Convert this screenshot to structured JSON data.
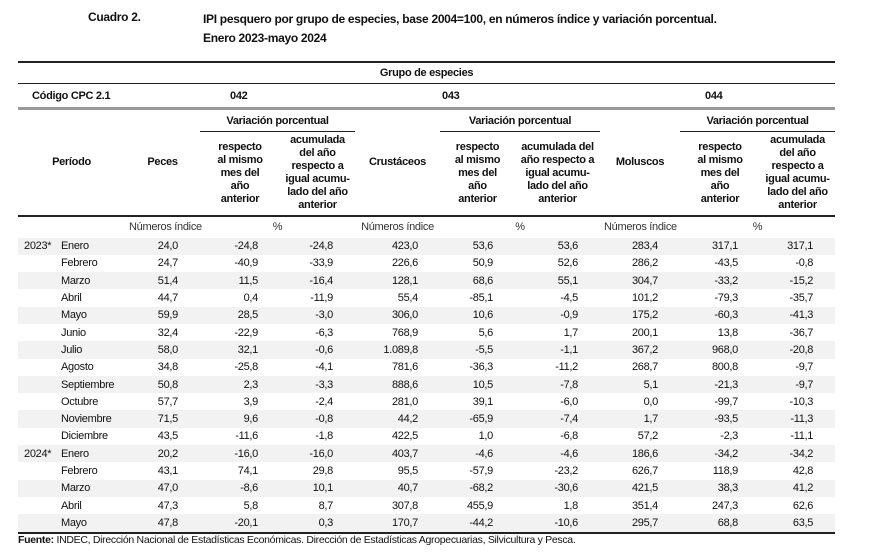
{
  "header": {
    "label": "Cuadro 2.",
    "title_line1": "IPI pesquero por grupo de especies, base 2004=100, en números índice y variación porcentual.",
    "title_line2": "Enero 2023-mayo 2024"
  },
  "table": {
    "group_header": "Grupo de especies",
    "code_label": "Código CPC 2.1",
    "codes": [
      "042",
      "043",
      "044"
    ],
    "variation_label": "Variación porcentual",
    "period_label": "Período",
    "species": [
      "Peces",
      "Crustáceos",
      "Moluscos"
    ],
    "sub_monthly": "respecto al mismo mes del año anterior",
    "sub_cumulative": "acumulada del año respecto a igual acumu-lado del año anterior",
    "unit_index": "Números índice",
    "unit_pct": "%",
    "rows": [
      {
        "year": "2023*",
        "month": "Enero",
        "v": [
          "24,0",
          "-24,8",
          "-24,8",
          "423,0",
          "53,6",
          "53,6",
          "283,4",
          "317,1",
          "317,1"
        ]
      },
      {
        "year": "",
        "month": "Febrero",
        "v": [
          "24,7",
          "-40,9",
          "-33,9",
          "226,6",
          "50,9",
          "52,6",
          "286,2",
          "-43,5",
          "-0,8"
        ]
      },
      {
        "year": "",
        "month": "Marzo",
        "v": [
          "51,4",
          "11,5",
          "-16,4",
          "128,1",
          "68,6",
          "55,1",
          "304,7",
          "-33,2",
          "-15,2"
        ]
      },
      {
        "year": "",
        "month": "Abril",
        "v": [
          "44,7",
          "0,4",
          "-11,9",
          "55,4",
          "-85,1",
          "-4,5",
          "101,2",
          "-79,3",
          "-35,7"
        ]
      },
      {
        "year": "",
        "month": "Mayo",
        "v": [
          "59,9",
          "28,5",
          "-3,0",
          "306,0",
          "10,6",
          "-0,9",
          "175,2",
          "-60,3",
          "-41,3"
        ]
      },
      {
        "year": "",
        "month": "Junio",
        "v": [
          "32,4",
          "-22,9",
          "-6,3",
          "768,9",
          "5,6",
          "1,7",
          "200,1",
          "13,8",
          "-36,7"
        ]
      },
      {
        "year": "",
        "month": "Julio",
        "v": [
          "58,0",
          "32,1",
          "-0,6",
          "1.089,8",
          "-5,5",
          "-1,1",
          "367,2",
          "968,0",
          "-20,8"
        ]
      },
      {
        "year": "",
        "month": "Agosto",
        "v": [
          "34,8",
          "-25,8",
          "-4,1",
          "781,6",
          "-36,3",
          "-11,2",
          "268,7",
          "800,8",
          "-9,7"
        ]
      },
      {
        "year": "",
        "month": "Septiembre",
        "v": [
          "50,8",
          "2,3",
          "-3,3",
          "888,6",
          "10,5",
          "-7,8",
          "5,1",
          "-21,3",
          "-9,7"
        ]
      },
      {
        "year": "",
        "month": "Octubre",
        "v": [
          "57,7",
          "3,9",
          "-2,4",
          "281,0",
          "39,1",
          "-6,0",
          "0,0",
          "-99,7",
          "-10,3"
        ]
      },
      {
        "year": "",
        "month": "Noviembre",
        "v": [
          "71,5",
          "9,6",
          "-0,8",
          "44,2",
          "-65,9",
          "-7,4",
          "1,7",
          "-93,5",
          "-11,3"
        ]
      },
      {
        "year": "",
        "month": "Diciembre",
        "v": [
          "43,5",
          "-11,6",
          "-1,8",
          "422,5",
          "1,0",
          "-6,8",
          "57,2",
          "-2,3",
          "-11,1"
        ]
      },
      {
        "year": "2024*",
        "month": "Enero",
        "v": [
          "20,2",
          "-16,0",
          "-16,0",
          "403,7",
          "-4,6",
          "-4,6",
          "186,6",
          "-34,2",
          "-34,2"
        ]
      },
      {
        "year": "",
        "month": "Febrero",
        "v": [
          "43,1",
          "74,1",
          "29,8",
          "95,5",
          "-57,9",
          "-23,2",
          "626,7",
          "118,9",
          "42,8"
        ]
      },
      {
        "year": "",
        "month": "Marzo",
        "v": [
          "47,0",
          "-8,6",
          "10,1",
          "40,7",
          "-68,2",
          "-30,6",
          "421,5",
          "38,3",
          "41,2"
        ]
      },
      {
        "year": "",
        "month": "Abril",
        "v": [
          "47,3",
          "5,8",
          "8,7",
          "307,8",
          "455,9",
          "1,8",
          "351,4",
          "247,3",
          "62,6"
        ]
      },
      {
        "year": "",
        "month": "Mayo",
        "v": [
          "47,8",
          "-20,1",
          "0,3",
          "170,7",
          "-44,2",
          "-10,6",
          "295,7",
          "68,8",
          "63,5"
        ]
      }
    ]
  },
  "footer": {
    "source_label": "Fuente:",
    "source_text": " INDEC, Dirección Nacional de Estadísticas Económicas. Dirección de Estadísticas Agropecuarias, Silvicultura y Pesca."
  }
}
